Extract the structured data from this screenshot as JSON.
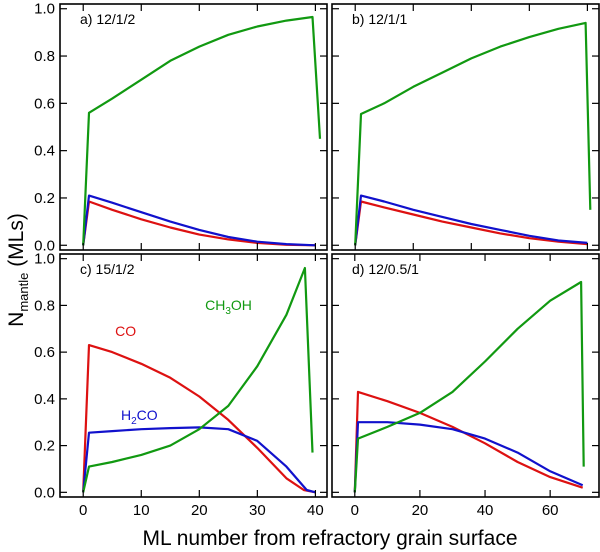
{
  "figure": {
    "xlabel": "ML number from refractory grain surface",
    "ylabel_main": "N",
    "ylabel_sub": "mantle",
    "ylabel_tail": " (MLs)"
  },
  "colors": {
    "CO": "#dd1111",
    "H2CO": "#1111cc",
    "CH3OH": "#119911"
  },
  "chart_data": [
    {
      "type": "line",
      "panel": "a) 12/1/2",
      "xlim": [
        -4,
        42
      ],
      "ylim": [
        -0.02,
        1.02
      ],
      "xticks": [
        0,
        10,
        20,
        30,
        40
      ],
      "yticks": [
        0.0,
        0.2,
        0.4,
        0.6,
        0.8,
        1.0
      ],
      "ytick_labels": [
        "0.0",
        "0.2",
        "0.4",
        "0.6",
        "0.8",
        "1.0"
      ],
      "series": [
        {
          "name": "CO",
          "x": [
            0,
            1,
            5,
            10,
            15,
            20,
            25,
            30,
            35,
            40
          ],
          "y": [
            0,
            0.185,
            0.15,
            0.11,
            0.075,
            0.045,
            0.025,
            0.01,
            0.002,
            0
          ]
        },
        {
          "name": "H2CO",
          "x": [
            0,
            1,
            5,
            10,
            15,
            20,
            25,
            30,
            35,
            40
          ],
          "y": [
            0,
            0.21,
            0.18,
            0.14,
            0.1,
            0.065,
            0.035,
            0.015,
            0.005,
            0
          ]
        },
        {
          "name": "CH3OH",
          "x": [
            0,
            1,
            5,
            10,
            15,
            20,
            25,
            30,
            35,
            39.5,
            40.8
          ],
          "y": [
            0,
            0.56,
            0.62,
            0.7,
            0.78,
            0.84,
            0.89,
            0.925,
            0.95,
            0.965,
            0.45
          ]
        }
      ]
    },
    {
      "type": "line",
      "panel": "b) 12/1/1",
      "xlim": [
        -4,
        42
      ],
      "ylim": [
        -0.02,
        1.02
      ],
      "xticks": [
        0,
        10,
        20,
        30,
        40
      ],
      "series": [
        {
          "name": "CO",
          "x": [
            0,
            1,
            5,
            10,
            15,
            20,
            25,
            30,
            35,
            40
          ],
          "y": [
            0,
            0.185,
            0.16,
            0.13,
            0.1,
            0.075,
            0.05,
            0.03,
            0.015,
            0.005
          ]
        },
        {
          "name": "H2CO",
          "x": [
            0,
            1,
            5,
            10,
            15,
            20,
            25,
            30,
            35,
            40
          ],
          "y": [
            0,
            0.21,
            0.185,
            0.15,
            0.12,
            0.09,
            0.065,
            0.04,
            0.02,
            0.01
          ]
        },
        {
          "name": "CH3OH",
          "x": [
            0,
            1,
            5,
            10,
            15,
            20,
            25,
            30,
            35,
            39.7,
            40.5
          ],
          "y": [
            0,
            0.555,
            0.6,
            0.67,
            0.73,
            0.79,
            0.84,
            0.88,
            0.915,
            0.94,
            0.15
          ]
        }
      ]
    },
    {
      "type": "line",
      "panel": "c) 15/1/2",
      "xlim": [
        -4,
        42
      ],
      "ylim": [
        -0.02,
        1.02
      ],
      "xticks": [
        0,
        10,
        20,
        30,
        40
      ],
      "xtick_labels": [
        "0",
        "10",
        "20",
        "30",
        "40"
      ],
      "yticks": [
        0.0,
        0.2,
        0.4,
        0.6,
        0.8,
        1.0
      ],
      "ytick_labels": [
        "0.0",
        "0.2",
        "0.4",
        "0.6",
        "0.8",
        "1.0"
      ],
      "annotations": [
        {
          "text": "CO",
          "series": "CO"
        },
        {
          "text": "H",
          "sub": "2",
          "tail": "CO",
          "series": "H2CO"
        },
        {
          "text": "CH",
          "sub": "3",
          "tail": "OH",
          "series": "CH3OH"
        }
      ],
      "series": [
        {
          "name": "CO",
          "x": [
            0,
            1,
            5,
            10,
            15,
            20,
            25,
            30,
            35,
            38,
            40
          ],
          "y": [
            0,
            0.63,
            0.6,
            0.55,
            0.49,
            0.41,
            0.31,
            0.19,
            0.06,
            0.01,
            0
          ]
        },
        {
          "name": "H2CO",
          "x": [
            0,
            1,
            5,
            10,
            15,
            20,
            25,
            30,
            35,
            38.5,
            40
          ],
          "y": [
            0,
            0.255,
            0.262,
            0.27,
            0.275,
            0.278,
            0.27,
            0.22,
            0.11,
            0.01,
            0
          ]
        },
        {
          "name": "CH3OH",
          "x": [
            0,
            1,
            5,
            10,
            15,
            20,
            25,
            30,
            35,
            38.2,
            39.5
          ],
          "y": [
            0,
            0.11,
            0.13,
            0.16,
            0.2,
            0.27,
            0.37,
            0.54,
            0.76,
            0.96,
            0.17
          ]
        }
      ]
    },
    {
      "type": "line",
      "panel": "d) 12/0.5/1",
      "xlim": [
        -7,
        75
      ],
      "ylim": [
        -0.02,
        1.02
      ],
      "xticks": [
        0,
        20,
        40,
        60
      ],
      "xtick_labels": [
        "0",
        "20",
        "40",
        "60"
      ],
      "series": [
        {
          "name": "CO",
          "x": [
            0,
            1,
            10,
            20,
            30,
            40,
            50,
            60,
            70
          ],
          "y": [
            0,
            0.43,
            0.39,
            0.34,
            0.28,
            0.21,
            0.13,
            0.065,
            0.02
          ]
        },
        {
          "name": "H2CO",
          "x": [
            0,
            1,
            10,
            20,
            30,
            40,
            50,
            60,
            70
          ],
          "y": [
            0,
            0.3,
            0.3,
            0.29,
            0.27,
            0.23,
            0.17,
            0.09,
            0.03
          ]
        },
        {
          "name": "CH3OH",
          "x": [
            0,
            1,
            10,
            20,
            30,
            40,
            50,
            60,
            69.5,
            70.3
          ],
          "y": [
            0,
            0.23,
            0.28,
            0.34,
            0.43,
            0.56,
            0.7,
            0.82,
            0.9,
            0.11
          ]
        }
      ]
    }
  ]
}
